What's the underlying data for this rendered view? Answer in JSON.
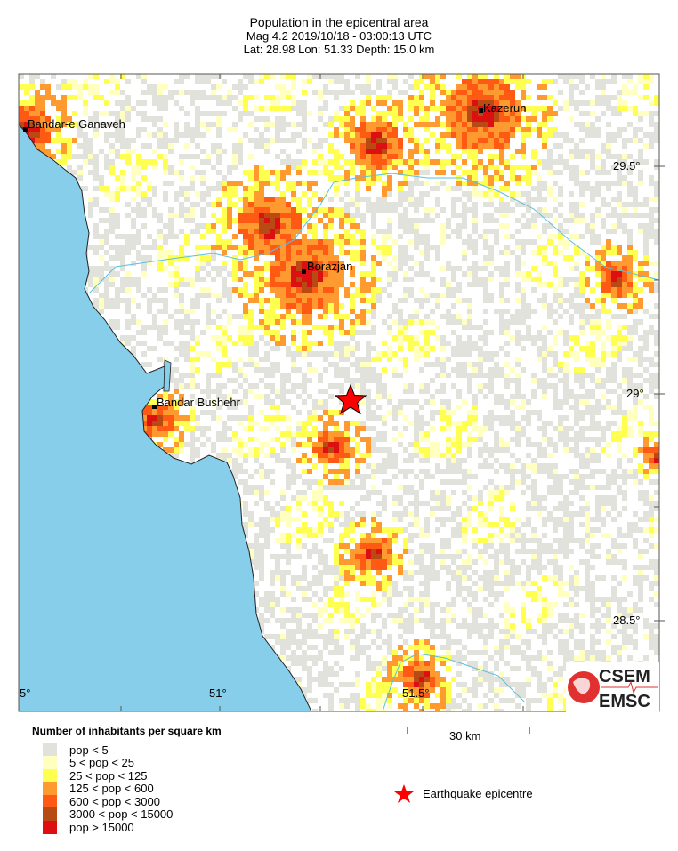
{
  "header": {
    "title": "Population in the epicentral area",
    "event_line": "Mag 4.2  2019/10/18 - 03:00:13 UTC",
    "location_line": "Lat: 28.98    Lon:  51.33     Depth:  15.0 km"
  },
  "map": {
    "epicentre": {
      "lat": 28.98,
      "lon": 51.33
    },
    "lon_labels": [
      "5°",
      "51°",
      "51.5°"
    ],
    "lat_labels": [
      "29.5°",
      "29°",
      "28.5°"
    ],
    "cities": [
      "Bandar-e Ganaveh",
      "Kazerun",
      "Borazjan",
      "Bandar Bushehr"
    ],
    "colors": {
      "sea": "#87ceeb",
      "river": "#5bc0de",
      "land": "#ffffff",
      "epicentre": "#ff0000"
    }
  },
  "legend": {
    "title": "Number of inhabitants per square km",
    "classes": [
      {
        "label": "pop < 5",
        "color": "#e2e2dc"
      },
      {
        "label": "5 < pop < 25",
        "color": "#ffffc0"
      },
      {
        "label": "25 < pop < 125",
        "color": "#ffff50"
      },
      {
        "label": "125 < pop < 600",
        "color": "#ff9a30"
      },
      {
        "label": "600 < pop < 3000",
        "color": "#ff5a14"
      },
      {
        "label": "3000 < pop < 15000",
        "color": "#b84a14"
      },
      {
        "label": "pop > 15000",
        "color": "#dc1010"
      }
    ],
    "scale_label": "30 km",
    "epicentre_label": "Earthquake epicentre"
  },
  "logo": {
    "top": "CSEM",
    "bottom": "EMSC"
  }
}
